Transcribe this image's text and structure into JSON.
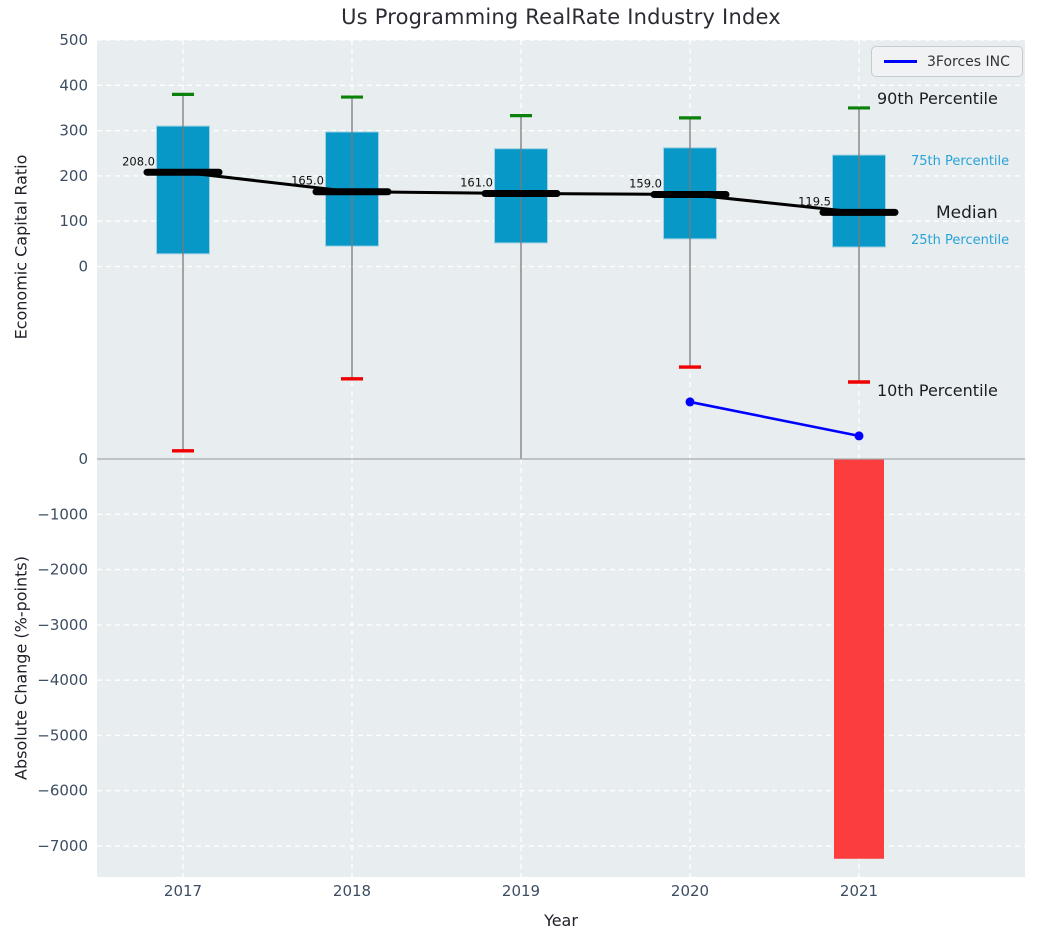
{
  "title": "Us Programming RealRate Industry Index",
  "legend": {
    "label": "3Forces INC"
  },
  "percentile_labels": {
    "p90": "90th Percentile",
    "p75": "75th Percentile",
    "median": "Median",
    "p25": "25th Percentile",
    "p10": "10th Percentile"
  },
  "colors": {
    "axes_bg": "#e8edef",
    "grid": "#ffffff",
    "box_fill": "#0898c8",
    "box_edge": "#a0d0e2",
    "whisker": "#7a7a7a",
    "cap_high": "#0b800b",
    "cap_low": "#f00000",
    "median_line": "#000000",
    "trend_line": "#000000",
    "company_line": "#0000ff",
    "bar_negative": "#fb3d3d",
    "tick_label": "#3d4e63",
    "annotation": "#111111",
    "percentile_blue": "#29a3d8",
    "spine": "#a3a8ad"
  },
  "chart_data": [
    {
      "type": "boxplot+line",
      "title": "Us Programming RealRate Industry Index",
      "ylabel": "Economic Capital Ratio",
      "xlabel": "",
      "categories": [
        "2017",
        "2018",
        "2019",
        "2020",
        "2021"
      ],
      "yticks": [
        500,
        400,
        300,
        200,
        100,
        0
      ],
      "ylim": [
        -425,
        500
      ],
      "grid": true,
      "legend_position": "upper right",
      "boxes": [
        {
          "category": "2017",
          "p90": 380,
          "q3": 310,
          "median": 208.0,
          "q1": 28,
          "p10": -407,
          "p10_clipped": false,
          "median_label": "208.0"
        },
        {
          "category": "2018",
          "p90": 374,
          "q3": 297,
          "median": 165.0,
          "q1": 45,
          "p10": -248,
          "p10_clipped": false,
          "median_label": "165.0"
        },
        {
          "category": "2019",
          "p90": 333,
          "q3": 260,
          "median": 161.0,
          "q1": 52,
          "p10": -425,
          "p10_clipped": true,
          "median_label": "161.0"
        },
        {
          "category": "2020",
          "p90": 328,
          "q3": 262,
          "median": 159.0,
          "q1": 61,
          "p10": -222,
          "p10_clipped": false,
          "median_label": "159.0"
        },
        {
          "category": "2021",
          "p90": 350,
          "q3": 246,
          "median": 119.5,
          "q1": 43,
          "p10": -255,
          "p10_clipped": false,
          "median_label": "119.5"
        }
      ],
      "series": [
        {
          "name": "3Forces INC",
          "x": [
            "2020",
            "2021"
          ],
          "values": [
            -299,
            -374
          ]
        }
      ]
    },
    {
      "type": "bar",
      "ylabel": "Absolute Change (%-points)",
      "xlabel": "Year",
      "categories": [
        "2017",
        "2018",
        "2019",
        "2020",
        "2021"
      ],
      "values": [
        null,
        null,
        null,
        null,
        -7230
      ],
      "yticks": [
        0,
        -1000,
        -2000,
        -3000,
        -4000,
        -5000,
        -6000,
        -7000
      ],
      "ylim": [
        -7560,
        0
      ],
      "grid": true
    }
  ]
}
